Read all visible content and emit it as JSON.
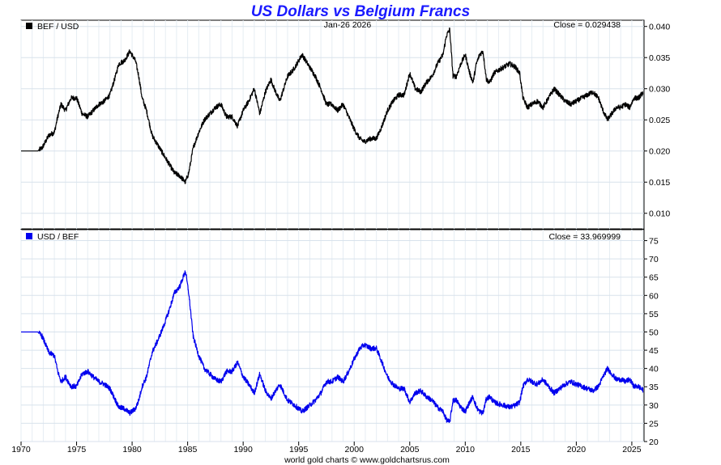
{
  "chart_data": {
    "type": "line",
    "title": "US Dollars vs Belgium Francs",
    "date_label": "Jan-26  2026",
    "footer": "world gold charts © www.goldchartsrus.com",
    "xlim": [
      1970,
      2026.1
    ],
    "x_ticks": [
      1970,
      1975,
      1980,
      1985,
      1990,
      1995,
      2000,
      2005,
      2010,
      2015,
      2020,
      2025
    ],
    "x_tick_labels": [
      "1970",
      "1975",
      "1980",
      "1985",
      "1990",
      "1995",
      "2000",
      "2005",
      "2010",
      "2015",
      "2020",
      "2025"
    ],
    "panels": [
      {
        "name": "top",
        "legend": "BEF / USD",
        "close_label": "Close = 0.029438",
        "color": "#000000",
        "ylim": [
          0.0075,
          0.041
        ],
        "y_ticks": [
          0.01,
          0.015,
          0.02,
          0.025,
          0.03,
          0.035,
          0.04
        ],
        "y_tick_labels": [
          "0.010",
          "0.015",
          "0.020",
          "0.025",
          "0.030",
          "0.035",
          "0.040"
        ],
        "series": [
          {
            "name": "BEF / USD",
            "x": [
              1970.0,
              1971.5,
              1971.9,
              1972.5,
              1973.0,
              1973.3,
              1973.6,
              1974.0,
              1974.5,
              1975.0,
              1975.5,
              1976.0,
              1976.5,
              1977.0,
              1977.5,
              1978.0,
              1978.5,
              1978.8,
              1979.3,
              1979.8,
              1980.3,
              1980.6,
              1980.9,
              1981.3,
              1981.8,
              1982.3,
              1982.8,
              1983.3,
              1983.8,
              1984.3,
              1984.8,
              1985.1,
              1985.5,
              1986.0,
              1986.5,
              1987.0,
              1987.5,
              1988.0,
              1988.5,
              1989.0,
              1989.5,
              1990.0,
              1990.5,
              1991.0,
              1991.5,
              1992.0,
              1992.5,
              1992.8,
              1993.3,
              1994.0,
              1994.5,
              1995.0,
              1995.3,
              1995.8,
              1996.5,
              1997.0,
              1997.5,
              1998.0,
              1998.5,
              1999.0,
              1999.5,
              2000.0,
              2000.5,
              2000.9,
              2001.5,
              2002.0,
              2002.5,
              2003.0,
              2003.5,
              2004.0,
              2004.5,
              2005.0,
              2005.5,
              2006.0,
              2006.5,
              2007.0,
              2007.5,
              2008.0,
              2008.3,
              2008.6,
              2008.9,
              2009.2,
              2009.6,
              2010.0,
              2010.4,
              2010.7,
              2011.0,
              2011.3,
              2011.6,
              2011.9,
              2012.2,
              2012.6,
              2013.0,
              2013.5,
              2014.0,
              2014.5,
              2014.9,
              2015.2,
              2015.6,
              2016.0,
              2016.5,
              2017.0,
              2017.5,
              2018.0,
              2018.5,
              2019.0,
              2019.5,
              2020.0,
              2020.5,
              2021.0,
              2021.5,
              2022.0,
              2022.4,
              2022.8,
              2023.2,
              2023.6,
              2024.0,
              2024.4,
              2024.8,
              2025.2,
              2025.6,
              2026.0
            ],
            "y": [
              0.02,
              0.02,
              0.0205,
              0.0225,
              0.023,
              0.0255,
              0.0275,
              0.0265,
              0.0285,
              0.0285,
              0.026,
              0.0255,
              0.0265,
              0.0275,
              0.028,
              0.029,
              0.032,
              0.034,
              0.0345,
              0.036,
              0.0345,
              0.032,
              0.0285,
              0.0265,
              0.0225,
              0.021,
              0.0195,
              0.018,
              0.0165,
              0.016,
              0.015,
              0.0165,
              0.0205,
              0.023,
              0.025,
              0.026,
              0.027,
              0.0275,
              0.0255,
              0.0255,
              0.024,
              0.0265,
              0.028,
              0.03,
              0.026,
              0.0295,
              0.0315,
              0.03,
              0.028,
              0.032,
              0.033,
              0.0345,
              0.0355,
              0.034,
              0.032,
              0.03,
              0.0275,
              0.0275,
              0.0265,
              0.0275,
              0.0255,
              0.0235,
              0.022,
              0.0215,
              0.022,
              0.022,
              0.024,
              0.0265,
              0.028,
              0.029,
              0.029,
              0.0325,
              0.03,
              0.0295,
              0.031,
              0.032,
              0.034,
              0.0355,
              0.0385,
              0.0395,
              0.032,
              0.032,
              0.034,
              0.0355,
              0.0325,
              0.031,
              0.034,
              0.0355,
              0.036,
              0.0315,
              0.031,
              0.0325,
              0.033,
              0.0335,
              0.034,
              0.0335,
              0.0325,
              0.0285,
              0.027,
              0.0275,
              0.028,
              0.027,
              0.0285,
              0.03,
              0.029,
              0.028,
              0.0275,
              0.028,
              0.0285,
              0.029,
              0.0295,
              0.0285,
              0.0265,
              0.025,
              0.026,
              0.027,
              0.027,
              0.0275,
              0.027,
              0.0285,
              0.0285,
              0.0294
            ]
          }
        ]
      },
      {
        "name": "bottom",
        "legend": "USD / BEF",
        "close_label": "Close = 33.969999",
        "color": "#0000ee",
        "ylim": [
          20,
          78
        ],
        "y_ticks": [
          20,
          25,
          30,
          35,
          40,
          45,
          50,
          55,
          60,
          65,
          70,
          75
        ],
        "y_tick_labels": [
          "20",
          "25",
          "30",
          "35",
          "40",
          "45",
          "50",
          "55",
          "60",
          "65",
          "70",
          "75"
        ],
        "series": [
          {
            "name": "USD / BEF",
            "x": [
              1970.0,
              1971.5,
              1971.9,
              1972.5,
              1973.0,
              1973.3,
              1973.6,
              1974.0,
              1974.5,
              1975.0,
              1975.5,
              1976.0,
              1976.5,
              1977.0,
              1977.5,
              1978.0,
              1978.5,
              1978.8,
              1979.3,
              1979.8,
              1980.3,
              1980.6,
              1980.9,
              1981.3,
              1981.8,
              1982.3,
              1982.8,
              1983.3,
              1983.8,
              1984.3,
              1984.8,
              1985.1,
              1985.5,
              1986.0,
              1986.5,
              1987.0,
              1987.5,
              1988.0,
              1988.5,
              1989.0,
              1989.5,
              1990.0,
              1990.5,
              1991.0,
              1991.5,
              1992.0,
              1992.5,
              1992.8,
              1993.3,
              1994.0,
              1994.5,
              1995.0,
              1995.3,
              1995.8,
              1996.5,
              1997.0,
              1997.5,
              1998.0,
              1998.5,
              1999.0,
              1999.5,
              2000.0,
              2000.5,
              2000.9,
              2001.5,
              2002.0,
              2002.5,
              2003.0,
              2003.5,
              2004.0,
              2004.5,
              2005.0,
              2005.5,
              2006.0,
              2006.5,
              2007.0,
              2007.5,
              2008.0,
              2008.3,
              2008.6,
              2008.9,
              2009.2,
              2009.6,
              2010.0,
              2010.4,
              2010.7,
              2011.0,
              2011.3,
              2011.6,
              2011.9,
              2012.2,
              2012.6,
              2013.0,
              2013.5,
              2014.0,
              2014.5,
              2014.9,
              2015.2,
              2015.6,
              2016.0,
              2016.5,
              2017.0,
              2017.5,
              2018.0,
              2018.5,
              2019.0,
              2019.5,
              2020.0,
              2020.5,
              2021.0,
              2021.5,
              2022.0,
              2022.4,
              2022.8,
              2023.2,
              2023.6,
              2024.0,
              2024.4,
              2024.8,
              2025.2,
              2025.6,
              2026.0
            ],
            "y": [
              50.0,
              50.0,
              48.8,
              44.4,
              43.5,
              39.2,
              36.4,
              37.7,
              35.1,
              35.1,
              38.5,
              39.2,
              37.7,
              36.4,
              35.7,
              34.5,
              31.3,
              29.4,
              29.0,
              27.8,
              29.0,
              31.3,
              35.1,
              37.7,
              44.4,
              47.6,
              51.3,
              55.6,
              60.6,
              62.5,
              66.7,
              60.6,
              48.8,
              43.5,
              40.0,
              38.5,
              37.0,
              36.4,
              39.2,
              39.2,
              41.7,
              37.7,
              35.7,
              33.3,
              38.5,
              33.9,
              31.7,
              33.3,
              35.7,
              31.3,
              30.3,
              29.0,
              28.2,
              29.4,
              31.3,
              33.3,
              36.4,
              36.4,
              37.7,
              36.4,
              39.2,
              42.6,
              45.5,
              46.5,
              45.5,
              45.5,
              41.7,
              37.7,
              35.7,
              34.5,
              34.5,
              30.8,
              33.3,
              33.9,
              32.3,
              31.3,
              29.4,
              28.2,
              26.0,
              25.3,
              31.3,
              31.3,
              29.4,
              28.2,
              30.8,
              32.3,
              29.4,
              28.2,
              27.8,
              31.7,
              32.3,
              30.8,
              30.3,
              29.9,
              29.4,
              29.9,
              30.8,
              35.1,
              37.0,
              36.4,
              35.7,
              37.0,
              35.1,
              33.3,
              34.5,
              35.7,
              36.4,
              35.7,
              35.1,
              34.5,
              33.9,
              35.1,
              37.7,
              40.0,
              38.5,
              37.0,
              37.0,
              36.4,
              37.0,
              35.1,
              35.1,
              34.0
            ]
          }
        ]
      }
    ]
  }
}
